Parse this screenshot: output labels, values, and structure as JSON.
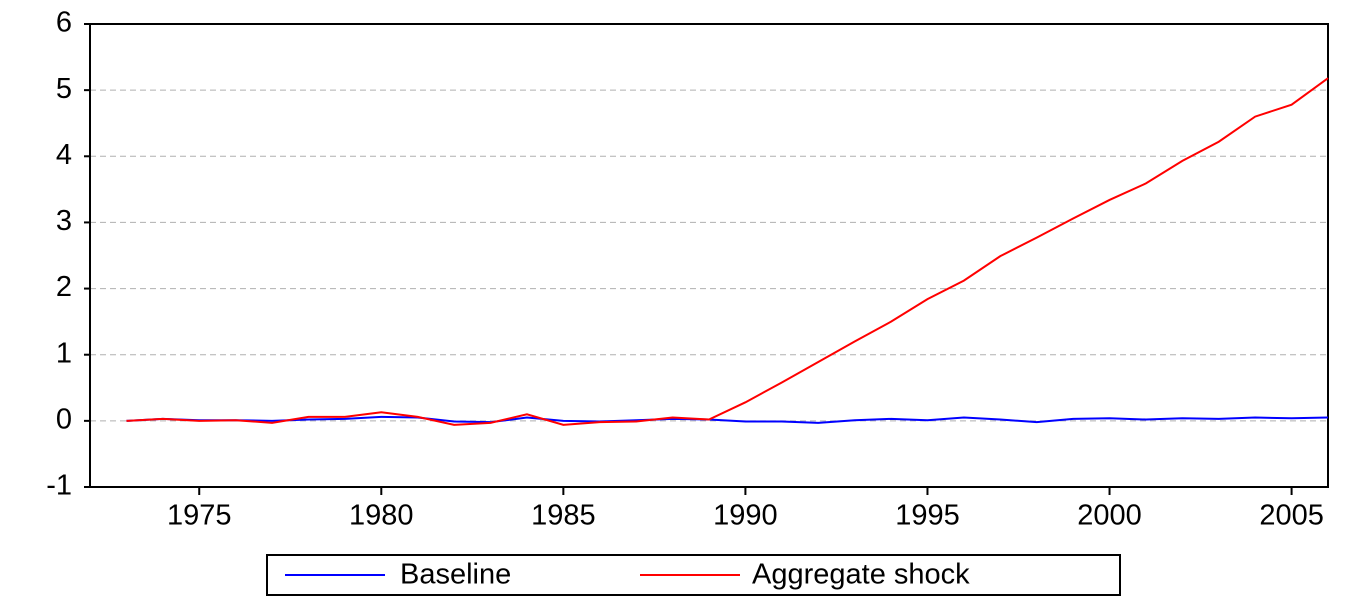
{
  "chart_data": {
    "type": "line",
    "x": [
      1973,
      1974,
      1975,
      1976,
      1977,
      1978,
      1979,
      1980,
      1981,
      1982,
      1983,
      1984,
      1985,
      1986,
      1987,
      1988,
      1989,
      1990,
      1991,
      1992,
      1993,
      1994,
      1995,
      1996,
      1997,
      1998,
      1999,
      2000,
      2001,
      2002,
      2003,
      2004,
      2005,
      2006
    ],
    "series": [
      {
        "name": "Baseline",
        "color": "#0000ff",
        "values": [
          0,
          0.03,
          0.01,
          0.01,
          0.0,
          0.02,
          0.03,
          0.06,
          0.05,
          -0.01,
          -0.02,
          0.05,
          0.0,
          -0.01,
          0.01,
          0.03,
          0.02,
          -0.01,
          -0.01,
          -0.03,
          0.01,
          0.03,
          0.01,
          0.05,
          0.02,
          -0.02,
          0.03,
          0.04,
          0.02,
          0.04,
          0.03,
          0.05,
          0.04,
          0.05
        ]
      },
      {
        "name": "Aggregate shock",
        "color": "#ff0000",
        "values": [
          0,
          0.03,
          0.0,
          0.01,
          -0.03,
          0.06,
          0.06,
          0.13,
          0.06,
          -0.06,
          -0.03,
          0.1,
          -0.06,
          -0.02,
          -0.01,
          0.05,
          0.02,
          0.28,
          0.58,
          0.89,
          1.2,
          1.5,
          1.84,
          2.12,
          2.49,
          2.77,
          3.06,
          3.34,
          3.59,
          3.93,
          4.22,
          4.6,
          4.78,
          5.18
        ]
      }
    ],
    "xlim": [
      1972,
      2006
    ],
    "xticks": [
      1975,
      1980,
      1985,
      1990,
      1995,
      2000,
      2005
    ],
    "ylim": [
      -1,
      6
    ],
    "yticks": [
      -1,
      0,
      1,
      2,
      3,
      4,
      5,
      6
    ],
    "grid": true,
    "legend": "bottom"
  }
}
